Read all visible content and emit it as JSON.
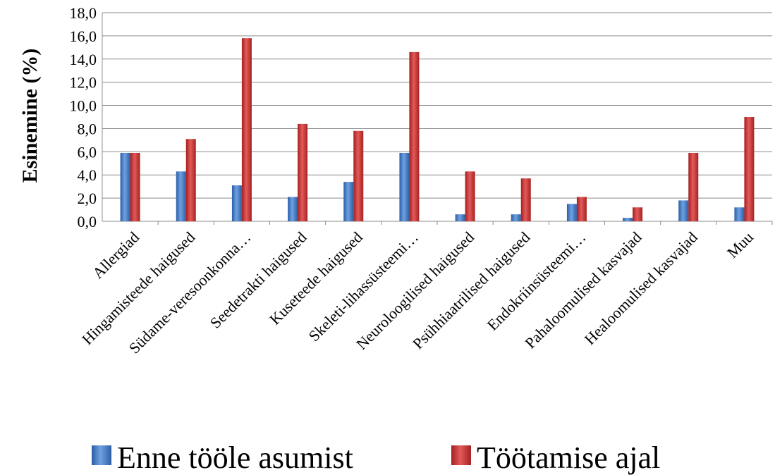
{
  "chart_data": {
    "type": "bar",
    "title": "",
    "xlabel": "",
    "ylabel": "Esinemine (%)",
    "ylim": [
      0,
      18
    ],
    "ytick_step": 2,
    "ytick_labels": [
      "0,0",
      "2,0",
      "4,0",
      "6,0",
      "8,0",
      "10,0",
      "12,0",
      "14,0",
      "16,0",
      "18,0"
    ],
    "grid": true,
    "legend_position": "bottom",
    "categories": [
      "Allergiad",
      "Hingamisteede  haigused",
      "Südame-veresoonkonna…",
      "Seedetrakti haigused",
      "Kuseteede haigused",
      "Skeleti-lihassüsteemi…",
      "Neuroloogilised haigused",
      "Psühhiaatrilised haigused",
      "Endokriinsüsteemi…",
      "Pahaloomulised kasvajad",
      "Healoomulised kasvajad",
      "Muu"
    ],
    "series": [
      {
        "name": "Enne tööle asumist",
        "color": "#3f78c6",
        "values": [
          5.9,
          4.3,
          3.1,
          2.1,
          3.4,
          5.9,
          0.6,
          0.6,
          1.5,
          0.3,
          1.8,
          1.2
        ]
      },
      {
        "name": "Töötamise ajal",
        "color": "#c03030",
        "values": [
          5.9,
          7.1,
          15.8,
          8.4,
          7.8,
          14.6,
          4.3,
          3.7,
          2.1,
          1.2,
          5.9,
          9.0
        ]
      }
    ]
  }
}
